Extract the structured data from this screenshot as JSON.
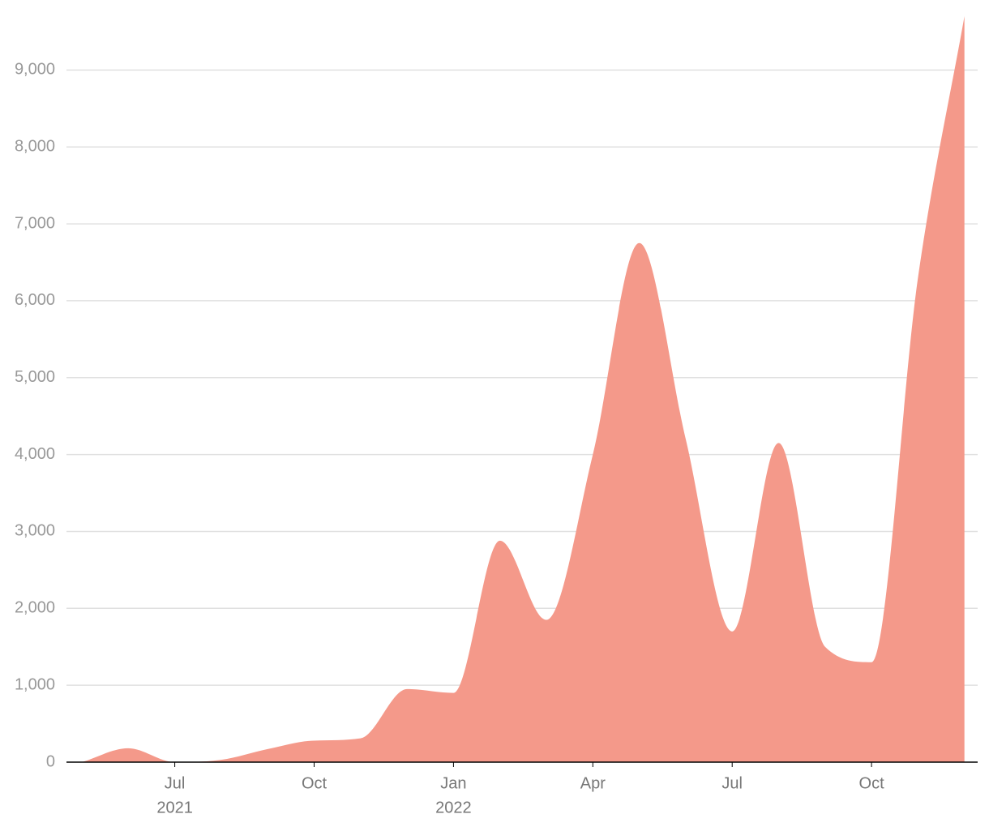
{
  "chart_data": {
    "type": "area",
    "x": [
      "2021-05",
      "2021-06",
      "2021-07",
      "2021-08",
      "2021-09",
      "2021-10",
      "2021-11",
      "2021-12",
      "2022-01",
      "2022-02",
      "2022-03",
      "2022-04",
      "2022-05",
      "2022-06",
      "2022-07",
      "2022-08",
      "2022-09",
      "2022-10",
      "2022-11",
      "2022-12"
    ],
    "series": [
      {
        "color": "#f4998a",
        "values": [
          0,
          180,
          0,
          30,
          170,
          280,
          310,
          950,
          900,
          2880,
          1850,
          4000,
          6750,
          4200,
          1700,
          4150,
          1500,
          1300,
          6300,
          9700
        ]
      }
    ],
    "ylim": [
      0,
      9700
    ],
    "yticks": [
      0,
      {
        "value": 1000,
        "label": "1,000"
      },
      {
        "value": 2000,
        "label": "2,000"
      },
      {
        "value": 3000,
        "label": "3,000"
      },
      {
        "value": 4000,
        "label": "4,000"
      },
      {
        "value": 5000,
        "label": "5,000"
      },
      {
        "value": 6000,
        "label": "6,000"
      },
      {
        "value": 7000,
        "label": "7,000"
      },
      {
        "value": 8000,
        "label": "8,000"
      },
      {
        "value": 9000,
        "label": "9,000"
      }
    ],
    "xticks": [
      {
        "value": "2021-07",
        "label": "Jul",
        "year": "2021"
      },
      {
        "value": "2021-10",
        "label": "Oct"
      },
      {
        "value": "2022-01",
        "label": "Jan",
        "year": "2022"
      },
      {
        "value": "2022-04",
        "label": "Apr"
      },
      {
        "value": "2022-07",
        "label": "Jul"
      },
      {
        "value": "2022-10",
        "label": "Oct"
      }
    ],
    "grid": true
  }
}
